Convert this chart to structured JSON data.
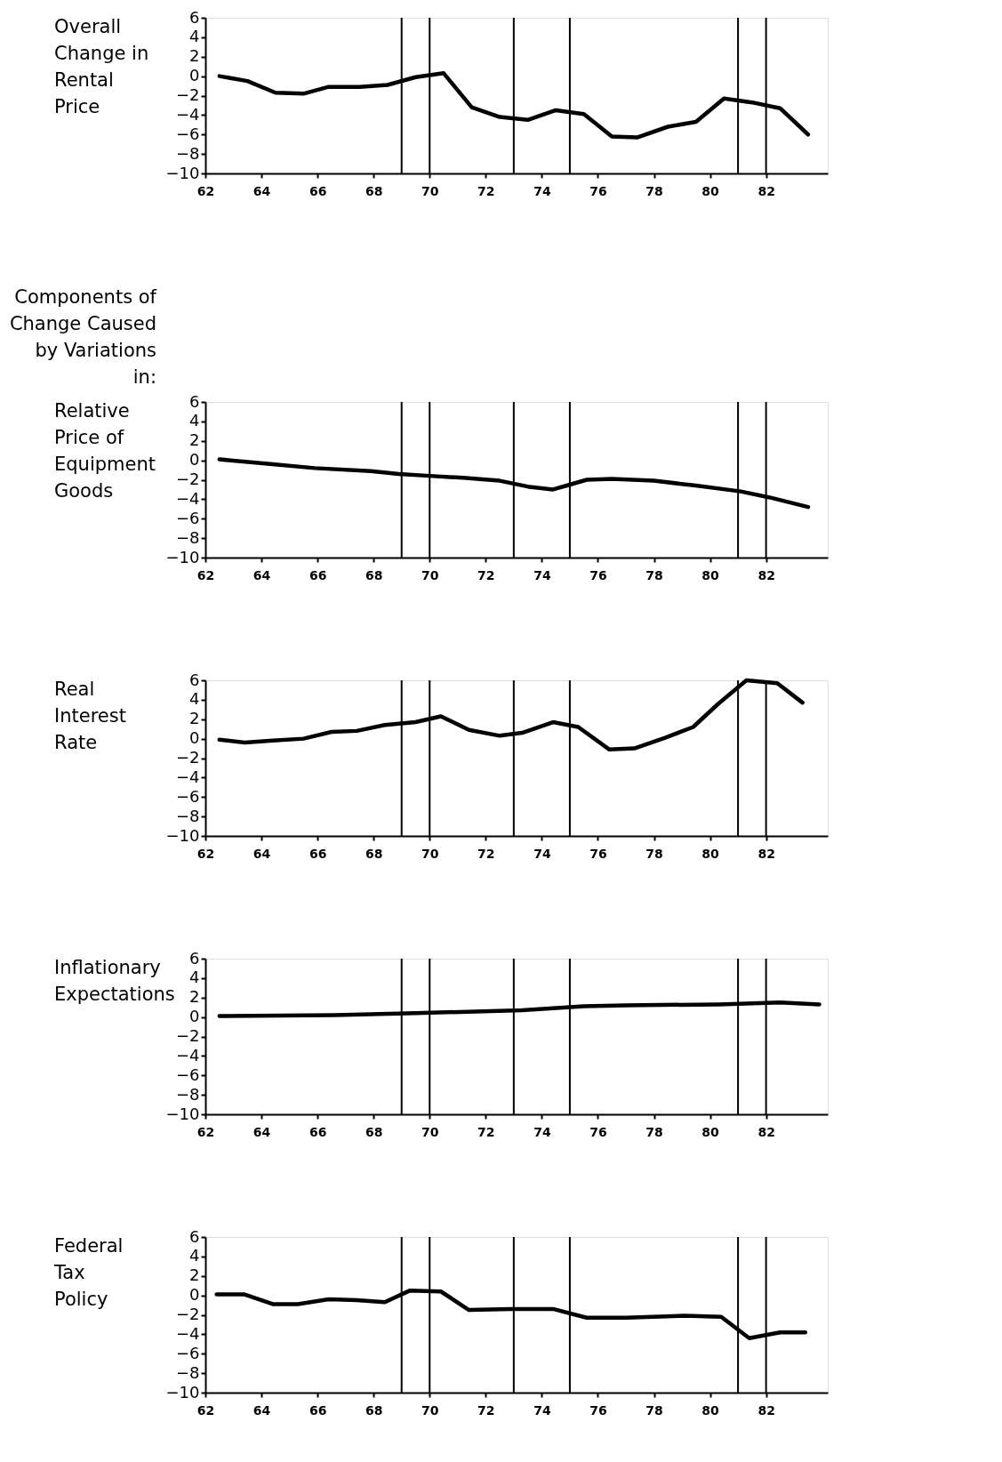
{
  "chart_data": [
    {
      "type": "line",
      "title": "Overall Change in Rental Price",
      "xlim": [
        62,
        84.2
      ],
      "xticks": [
        62,
        64,
        66,
        68,
        70,
        72,
        74,
        76,
        78,
        80,
        82
      ],
      "ylim": [
        -10,
        6
      ],
      "yticks": [
        -10,
        -8,
        -6,
        -4,
        -2,
        0,
        2,
        4,
        6
      ],
      "ref_lines": [
        {
          "axis": "x",
          "value": 69
        },
        {
          "axis": "x",
          "value": 70
        },
        {
          "axis": "x",
          "value": 73
        },
        {
          "axis": "x",
          "value": 75
        },
        {
          "axis": "x",
          "value": 81
        },
        {
          "axis": "x",
          "value": 82
        }
      ],
      "series": [
        {
          "color": "#000000",
          "x": [
            62.5,
            63.5,
            64.5,
            65.5,
            66.4,
            67.5,
            68.5,
            69.5,
            70.5,
            71.5,
            72.5,
            73.5,
            74.5,
            75.5,
            76.5,
            77.4,
            78.5,
            79.5,
            80.5,
            81.5,
            82.5,
            83.5
          ],
          "values": [
            0,
            -0.5,
            -1.7,
            -1.8,
            -1.1,
            -1.1,
            -0.9,
            -0.1,
            0.3,
            -3.2,
            -4.2,
            -4.5,
            -3.5,
            -3.9,
            -6.2,
            -6.3,
            -5.2,
            -4.7,
            -2.3,
            -2.7,
            -3.3,
            -6.0
          ]
        }
      ]
    },
    {
      "type": "line",
      "title": "Relative Price of Equipment Goods",
      "annotations": [
        "Components of Change Caused by Variations in:"
      ],
      "xlim": [
        62,
        84.2
      ],
      "xticks": [
        62,
        64,
        66,
        68,
        70,
        72,
        74,
        76,
        78,
        80,
        82
      ],
      "ylim": [
        -10,
        6
      ],
      "yticks": [
        -10,
        -8,
        -6,
        -4,
        -2,
        0,
        2,
        4,
        6
      ],
      "ref_lines": [
        {
          "axis": "x",
          "value": 69
        },
        {
          "axis": "x",
          "value": 70
        },
        {
          "axis": "x",
          "value": 73
        },
        {
          "axis": "x",
          "value": 75
        },
        {
          "axis": "x",
          "value": 81
        },
        {
          "axis": "x",
          "value": 82
        }
      ],
      "series": [
        {
          "color": "#000000",
          "x": [
            62.5,
            64.4,
            65.9,
            67.9,
            68.9,
            70,
            71.2,
            72.5,
            73.5,
            74.4,
            75,
            75.6,
            76.5,
            78,
            79.5,
            81.1,
            82.1,
            83.5
          ],
          "values": [
            0.1,
            -0.4,
            -0.8,
            -1.1,
            -1.4,
            -1.6,
            -1.8,
            -2.1,
            -2.7,
            -3.0,
            -2.5,
            -2.0,
            -1.9,
            -2.1,
            -2.6,
            -3.2,
            -3.8,
            -4.8
          ]
        }
      ]
    },
    {
      "type": "line",
      "title": "Real Interest Rate",
      "xlim": [
        62,
        84.2
      ],
      "xticks": [
        62,
        64,
        66,
        68,
        70,
        72,
        74,
        76,
        78,
        80,
        82
      ],
      "ylim": [
        -10,
        6
      ],
      "yticks": [
        -10,
        -8,
        -6,
        -4,
        -2,
        0,
        2,
        4,
        6
      ],
      "ref_lines": [
        {
          "axis": "x",
          "value": 69
        },
        {
          "axis": "x",
          "value": 70
        },
        {
          "axis": "x",
          "value": 73
        },
        {
          "axis": "x",
          "value": 75
        },
        {
          "axis": "x",
          "value": 81
        },
        {
          "axis": "x",
          "value": 82
        }
      ],
      "series": [
        {
          "color": "#000000",
          "x": [
            62.5,
            63.4,
            64.4,
            65.5,
            66.5,
            67.4,
            68.4,
            69.5,
            70.4,
            71.4,
            72.5,
            73.3,
            74.4,
            75.3,
            76.4,
            77.3,
            78.4,
            79.4,
            80.3,
            81.3,
            82.4,
            83.3
          ],
          "values": [
            -0.1,
            -0.4,
            -0.2,
            0,
            0.7,
            0.8,
            1.4,
            1.7,
            2.3,
            0.9,
            0.3,
            0.6,
            1.7,
            1.2,
            -1.1,
            -1.0,
            0.1,
            1.2,
            3.6,
            6.0,
            5.7,
            3.7
          ]
        }
      ]
    },
    {
      "type": "line",
      "title": "Inflationary Expectations",
      "xlim": [
        62,
        84.2
      ],
      "xticks": [
        62,
        64,
        66,
        68,
        70,
        72,
        74,
        76,
        78,
        80,
        82
      ],
      "ylim": [
        -10,
        6
      ],
      "yticks": [
        -10,
        -8,
        -6,
        -4,
        -2,
        0,
        2,
        4,
        6
      ],
      "ref_lines": [
        {
          "axis": "x",
          "value": 69
        },
        {
          "axis": "x",
          "value": 70
        },
        {
          "axis": "x",
          "value": 73
        },
        {
          "axis": "x",
          "value": 75
        },
        {
          "axis": "x",
          "value": 81
        },
        {
          "axis": "x",
          "value": 82
        }
      ],
      "series": [
        {
          "color": "#000000",
          "x": [
            62.5,
            66.6,
            69.5,
            73.3,
            75.5,
            77,
            80.3,
            82.5,
            83.9
          ],
          "values": [
            0.1,
            0.2,
            0.4,
            0.7,
            1.1,
            1.2,
            1.3,
            1.5,
            1.3
          ]
        }
      ]
    },
    {
      "type": "line",
      "title": "Federal Tax Policy",
      "xlim": [
        62,
        84.2
      ],
      "xticks": [
        62,
        64,
        66,
        68,
        70,
        72,
        74,
        76,
        78,
        80,
        82
      ],
      "ylim": [
        -10,
        6
      ],
      "yticks": [
        -10,
        -8,
        -6,
        -4,
        -2,
        0,
        2,
        4,
        6
      ],
      "ref_lines": [
        {
          "axis": "x",
          "value": 69
        },
        {
          "axis": "x",
          "value": 70
        },
        {
          "axis": "x",
          "value": 73
        },
        {
          "axis": "x",
          "value": 75
        },
        {
          "axis": "x",
          "value": 81
        },
        {
          "axis": "x",
          "value": 82
        }
      ],
      "series": [
        {
          "color": "#000000",
          "x": [
            62.4,
            63.4,
            64.4,
            65.3,
            66.4,
            67.4,
            68.4,
            69.3,
            70.4,
            71.4,
            72.9,
            74.4,
            75.6,
            77,
            79.1,
            80.4,
            81.4,
            82.5,
            83.4
          ],
          "values": [
            0.1,
            0.1,
            -0.9,
            -0.9,
            -0.4,
            -0.5,
            -0.7,
            0.5,
            0.4,
            -1.5,
            -1.4,
            -1.4,
            -2.3,
            -2.3,
            -2.1,
            -2.2,
            -4.4,
            -3.8,
            -3.8
          ]
        }
      ]
    }
  ]
}
